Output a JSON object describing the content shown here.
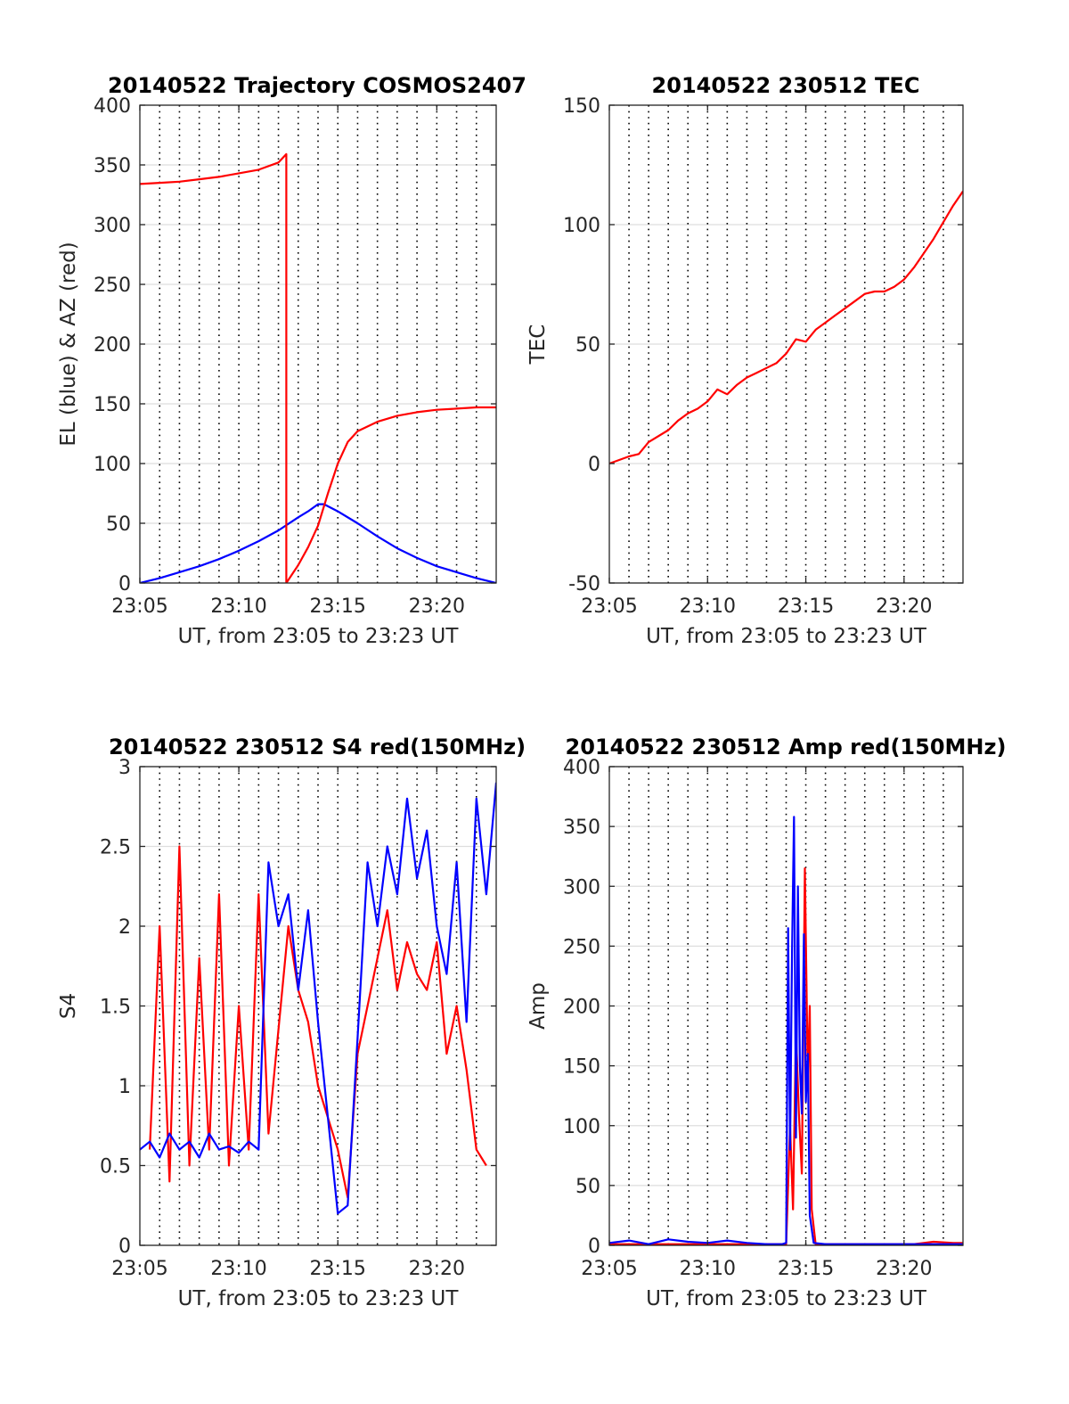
{
  "chart_data": [
    {
      "type": "line",
      "title": "20140522 Trajectory COSMOS2407",
      "xlabel": "UT, from 23:05 to 23:23 UT",
      "ylabel": "EL (blue) & AZ (red)",
      "xlim": [
        0,
        18
      ],
      "ylim": [
        0,
        400
      ],
      "xticks": [
        0,
        5,
        10,
        15
      ],
      "xticklabels": [
        "23:05",
        "23:10",
        "23:15",
        "23:20"
      ],
      "yticks": [
        0,
        50,
        100,
        150,
        200,
        250,
        300,
        350,
        400
      ],
      "yticklabels": [
        "0",
        "50",
        "100",
        "150",
        "200",
        "250",
        "300",
        "350",
        "400"
      ],
      "grid": {
        "horizontal": "solid-light",
        "vertical": "dotted",
        "vertical_step": 1
      },
      "series": [
        {
          "color": "#0000ff",
          "x": [
            0,
            1,
            2,
            3,
            4,
            5,
            6,
            7,
            8,
            8.5,
            9,
            9.3,
            10,
            11,
            12,
            13,
            14,
            15,
            16,
            17,
            18
          ],
          "y": [
            0,
            4,
            9,
            14,
            20,
            27,
            35,
            44,
            55,
            60,
            66,
            66,
            60,
            50,
            39,
            29,
            21,
            14,
            9,
            4,
            0
          ]
        },
        {
          "color": "#ff0000",
          "x": [
            0,
            1,
            2,
            3,
            4,
            5,
            6,
            7,
            7.4,
            7.4,
            7.6,
            8,
            8.5,
            9,
            9.5,
            10,
            10.5,
            11,
            12,
            13,
            14,
            15,
            16,
            17,
            18
          ],
          "y": [
            334,
            335,
            336,
            338,
            340,
            343,
            346,
            352,
            359,
            0,
            5,
            15,
            30,
            48,
            75,
            100,
            118,
            127,
            135,
            140,
            143,
            145,
            146,
            147,
            147
          ]
        }
      ]
    },
    {
      "type": "line",
      "title": "20140522 230512 TEC",
      "xlabel": "UT, from 23:05 to 23:23 UT",
      "ylabel": "TEC",
      "xlim": [
        0,
        18
      ],
      "ylim": [
        -50,
        150
      ],
      "xticks": [
        0,
        5,
        10,
        15
      ],
      "xticklabels": [
        "23:05",
        "23:10",
        "23:15",
        "23:20"
      ],
      "yticks": [
        -50,
        0,
        50,
        100,
        150
      ],
      "yticklabels": [
        "-50",
        "0",
        "50",
        "100",
        "150"
      ],
      "grid": {
        "horizontal": "solid-light",
        "vertical": "dotted",
        "vertical_step": 1
      },
      "series": [
        {
          "color": "#ff0000",
          "x": [
            0,
            1,
            1.5,
            2,
            3,
            3.5,
            4,
            4.5,
            5,
            5.5,
            6,
            6.5,
            7,
            7.5,
            8,
            8.5,
            9,
            9.5,
            10,
            10.5,
            11,
            11.5,
            12,
            12.5,
            13,
            13.5,
            14,
            14.5,
            15,
            15.5,
            16,
            16.5,
            17,
            17.5,
            18
          ],
          "y": [
            0,
            3,
            4,
            9,
            14,
            18,
            21,
            23,
            26,
            31,
            29,
            33,
            36,
            38,
            40,
            42,
            46,
            52,
            51,
            56,
            59,
            62,
            65,
            68,
            71,
            72,
            72,
            74,
            77,
            82,
            88,
            94,
            101,
            108,
            114
          ]
        }
      ]
    },
    {
      "type": "line",
      "title": "20140522 230512 S4 red(150MHz)",
      "xlabel": "UT, from 23:05 to 23:23 UT",
      "ylabel": "S4",
      "xlim": [
        0,
        18
      ],
      "ylim": [
        0,
        3
      ],
      "xticks": [
        0,
        5,
        10,
        15
      ],
      "xticklabels": [
        "23:05",
        "23:10",
        "23:15",
        "23:20"
      ],
      "yticks": [
        0,
        0.5,
        1,
        1.5,
        2,
        2.5,
        3
      ],
      "yticklabels": [
        "0",
        "0.5",
        "1",
        "1.5",
        "2",
        "2.5",
        "3"
      ],
      "grid": {
        "horizontal": "solid-light",
        "vertical": "dotted",
        "vertical_step": 1
      },
      "series": [
        {
          "color": "#ff0000",
          "x": [
            0.5,
            1.0,
            1.5,
            2.0,
            2.5,
            3.0,
            3.5,
            4.0,
            4.5,
            5.0,
            5.5,
            6.0,
            6.5,
            7.5,
            8.0,
            8.5,
            9.0,
            9.5,
            10.0,
            10.5,
            11.0,
            11.5,
            12.0,
            12.5,
            13.0,
            13.5,
            14.0,
            14.5,
            15.0,
            15.5,
            16.0,
            16.5,
            17.0,
            17.5
          ],
          "y": [
            0.6,
            2.0,
            0.4,
            2.5,
            0.5,
            1.8,
            0.6,
            2.2,
            0.5,
            1.5,
            0.6,
            2.2,
            0.7,
            2.0,
            1.6,
            1.4,
            1.0,
            0.8,
            0.6,
            0.3,
            1.2,
            1.5,
            1.8,
            2.1,
            1.6,
            1.9,
            1.7,
            1.6,
            1.9,
            1.2,
            1.5,
            1.1,
            0.6,
            0.5
          ]
        },
        {
          "color": "#0000ff",
          "x": [
            0,
            0.5,
            1.0,
            1.5,
            2.0,
            2.5,
            3.0,
            3.5,
            4.0,
            4.5,
            5.0,
            5.5,
            6.0,
            6.5,
            7.0,
            7.5,
            8.0,
            8.5,
            9.0,
            9.5,
            10.0,
            10.5,
            11.0,
            11.5,
            12.0,
            12.5,
            13.0,
            13.5,
            14.0,
            14.5,
            15.0,
            15.5,
            16.0,
            16.5,
            17.0,
            17.5,
            18.0
          ],
          "y": [
            0.6,
            0.65,
            0.55,
            0.7,
            0.6,
            0.65,
            0.55,
            0.7,
            0.6,
            0.62,
            0.58,
            0.65,
            0.6,
            2.4,
            2.0,
            2.2,
            1.6,
            2.1,
            1.4,
            0.8,
            0.2,
            0.25,
            1.3,
            2.4,
            2.0,
            2.5,
            2.2,
            2.8,
            2.3,
            2.6,
            2.0,
            1.7,
            2.4,
            1.4,
            2.8,
            2.2,
            2.9
          ]
        }
      ]
    },
    {
      "type": "line",
      "title": "20140522 230512 Amp red(150MHz)",
      "xlabel": "UT, from 23:05 to 23:23 UT",
      "ylabel": "Amp",
      "xlim": [
        0,
        18
      ],
      "ylim": [
        0,
        400
      ],
      "xticks": [
        0,
        5,
        10,
        15
      ],
      "xticklabels": [
        "23:05",
        "23:10",
        "23:15",
        "23:20"
      ],
      "yticks": [
        0,
        50,
        100,
        150,
        200,
        250,
        300,
        350,
        400
      ],
      "yticklabels": [
        "0",
        "50",
        "100",
        "150",
        "200",
        "250",
        "300",
        "350",
        "400"
      ],
      "grid": {
        "horizontal": "solid-light",
        "vertical": "dotted",
        "vertical_step": 1
      },
      "series": [
        {
          "color": "#ff0000",
          "x": [
            0,
            8,
            9.0,
            9.2,
            9.35,
            9.5,
            9.65,
            9.8,
            9.95,
            10.1,
            10.2,
            10.3,
            10.5,
            12,
            15.5,
            16.5,
            17.5,
            18
          ],
          "y": [
            1,
            1,
            1,
            100,
            30,
            180,
            110,
            60,
            315,
            140,
            200,
            30,
            1,
            1,
            1,
            3,
            2,
            2
          ]
        },
        {
          "color": "#0000ff",
          "x": [
            0,
            1,
            2,
            3,
            4,
            5,
            6,
            7,
            8,
            8.8,
            9.0,
            9.1,
            9.2,
            9.3,
            9.4,
            9.5,
            9.6,
            9.7,
            9.8,
            9.9,
            10.0,
            10.1,
            10.2,
            10.4,
            11,
            12,
            13,
            14,
            15,
            16,
            17,
            18
          ],
          "y": [
            2,
            4,
            1,
            5,
            3,
            2,
            4,
            2,
            1,
            1,
            2,
            265,
            80,
            245,
            358,
            90,
            300,
            150,
            110,
            260,
            120,
            160,
            25,
            2,
            1,
            1,
            1,
            1,
            1,
            1,
            1,
            1
          ]
        }
      ]
    }
  ]
}
